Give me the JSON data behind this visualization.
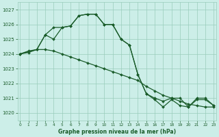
{
  "title": "Graphe pression niveau de la mer (hPa)",
  "bg_color": "#cceee8",
  "grid_color": "#99ccbb",
  "line_color": "#1a5c2a",
  "ylim": [
    1019.5,
    1027.5
  ],
  "xlim": [
    -0.3,
    23.3
  ],
  "yticks": [
    1020,
    1021,
    1022,
    1023,
    1024,
    1025,
    1026,
    1027
  ],
  "xticks": [
    0,
    1,
    2,
    3,
    4,
    5,
    6,
    7,
    8,
    9,
    10,
    11,
    12,
    13,
    14,
    15,
    16,
    17,
    18,
    19,
    20,
    21,
    22,
    23
  ],
  "series1_x": [
    0,
    1,
    2,
    3,
    4,
    5,
    6,
    7,
    8,
    9,
    10,
    11,
    12,
    13,
    14,
    15,
    16,
    17,
    18,
    19,
    20,
    21,
    22,
    23
  ],
  "series1_y": [
    1024.0,
    1024.1,
    1024.3,
    1024.3,
    1024.2,
    1024.0,
    1023.8,
    1023.6,
    1023.4,
    1023.2,
    1023.0,
    1022.8,
    1022.6,
    1022.4,
    1022.2,
    1021.8,
    1021.5,
    1021.2,
    1021.0,
    1020.8,
    1020.6,
    1020.5,
    1020.4,
    1020.4
  ],
  "series2_x": [
    0,
    1,
    2,
    3,
    4,
    5,
    6,
    7,
    8,
    9,
    10,
    11,
    12,
    13,
    14,
    15,
    16,
    17,
    18,
    19,
    20,
    21,
    22,
    23
  ],
  "series2_y": [
    1024.0,
    1024.2,
    1024.3,
    1025.3,
    1025.8,
    1025.8,
    1025.9,
    1026.6,
    1026.7,
    1026.7,
    1026.0,
    1026.0,
    1025.0,
    1024.6,
    1022.6,
    1021.3,
    1020.9,
    1020.4,
    1020.9,
    1020.5,
    1020.4,
    1020.9,
    1020.9,
    1020.5
  ],
  "series3_x": [
    0,
    2,
    3,
    4,
    5,
    6,
    7,
    8,
    9,
    10,
    11,
    12,
    13,
    14,
    15,
    16,
    17,
    18,
    19,
    20,
    21,
    22,
    23
  ],
  "series3_y": [
    1024.0,
    1024.3,
    1025.3,
    1025.0,
    1025.8,
    1025.9,
    1026.6,
    1026.7,
    1026.7,
    1026.0,
    1026.0,
    1025.0,
    1024.6,
    1022.6,
    1021.3,
    1021.0,
    1020.8,
    1021.0,
    1021.0,
    1020.4,
    1021.0,
    1021.0,
    1020.5
  ]
}
